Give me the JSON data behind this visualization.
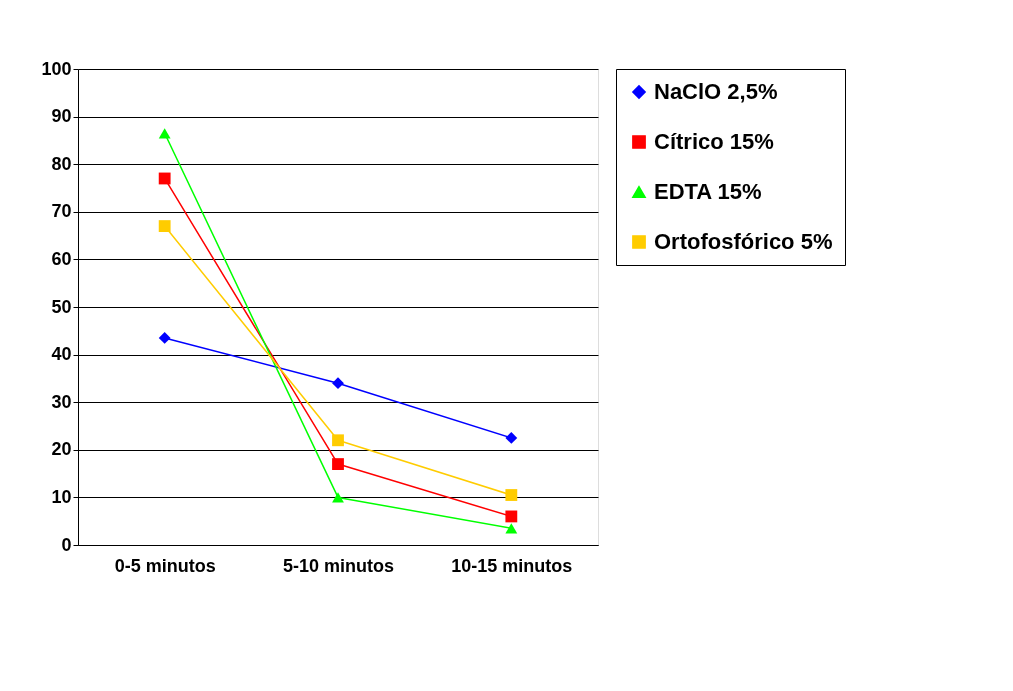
{
  "chart_data": {
    "type": "line",
    "categories": [
      "0-5 minutos",
      "5-10 minutos",
      "10-15 minutos"
    ],
    "series": [
      {
        "name": "NaClO 2,5%",
        "color": "#0000ff",
        "marker": "diamond",
        "values": [
          43.5,
          34,
          22.5
        ]
      },
      {
        "name": "Cítrico 15%",
        "color": "#ff0000",
        "marker": "square",
        "values": [
          77,
          17,
          6
        ]
      },
      {
        "name": "EDTA 15%",
        "color": "#00ff00",
        "marker": "triangle",
        "values": [
          86.5,
          10,
          3.5
        ]
      },
      {
        "name": "Ortofosfórico 5%",
        "color": "#ffcc00",
        "marker": "square",
        "values": [
          67,
          22,
          10.5
        ]
      }
    ],
    "ylim": [
      0,
      100
    ],
    "yticks": [
      0,
      10,
      20,
      30,
      40,
      50,
      60,
      70,
      80,
      90,
      100
    ],
    "grid": "y",
    "legend": "right",
    "line_style": "solid"
  }
}
